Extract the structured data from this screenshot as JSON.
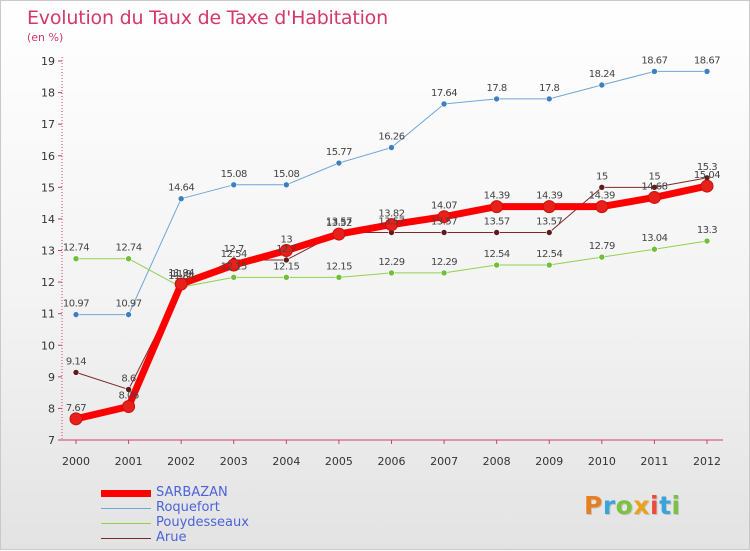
{
  "chart_data": {
    "type": "line",
    "title": "Evolution du Taux de Taxe d'Habitation",
    "unit_label": "(en %)",
    "x": [
      "2000",
      "2001",
      "2002",
      "2003",
      "2004",
      "2005",
      "2006",
      "2007",
      "2008",
      "2009",
      "2010",
      "2011",
      "2012"
    ],
    "ylim": [
      7,
      19
    ],
    "yticks": [
      7,
      8,
      9,
      10,
      11,
      12,
      13,
      14,
      15,
      16,
      17,
      18,
      19
    ],
    "grid": false,
    "legend_position": "bottom-left",
    "series": [
      {
        "name": "SARBAZAN",
        "color": "#ff0000",
        "marker": "#e8201a",
        "width": 7,
        "values": [
          7.67,
          8.06,
          11.94,
          12.54,
          13.0,
          13.52,
          13.82,
          14.07,
          14.39,
          14.39,
          14.39,
          14.68,
          15.04
        ],
        "labels": [
          "7.67",
          "8.06",
          "11.94",
          "12.54",
          "13",
          "13.52",
          "13.82",
          "14.07",
          "14.39",
          "14.39",
          "14.39",
          "14.68",
          "15.04"
        ]
      },
      {
        "name": "Roquefort",
        "color": "#6fa6d6",
        "marker": "#3d7fc1",
        "width": 1,
        "values": [
          10.97,
          10.97,
          14.64,
          15.08,
          15.08,
          15.77,
          16.26,
          17.64,
          17.8,
          17.8,
          18.24,
          18.67,
          18.67
        ],
        "labels": [
          "10.97",
          "10.97",
          "14.64",
          "15.08",
          "15.08",
          "15.77",
          "16.26",
          "17.64",
          "17.8",
          "17.8",
          "18.24",
          "18.67",
          "18.67"
        ]
      },
      {
        "name": "Pouydesseaux",
        "color": "#92d050",
        "marker": "#6fbf3a",
        "width": 1,
        "values": [
          12.74,
          12.74,
          11.84,
          12.15,
          12.15,
          12.15,
          12.29,
          12.29,
          12.54,
          12.54,
          12.79,
          13.04,
          13.3
        ],
        "labels": [
          "12.74",
          "12.74",
          "11.84",
          "12.15",
          "12.15",
          "12.15",
          "12.29",
          "12.29",
          "12.54",
          "12.54",
          "12.79",
          "13.04",
          "13.3"
        ]
      },
      {
        "name": "Arue",
        "color": "#7a2a2a",
        "marker": "#5e1c1c",
        "width": 1,
        "values": [
          9.14,
          8.6,
          11.9,
          12.7,
          12.7,
          13.57,
          13.57,
          13.57,
          13.57,
          13.57,
          15.0,
          15.0,
          15.3
        ],
        "labels": [
          "9.14",
          "8.6",
          "11.9",
          "12.7",
          "12.7",
          "13.57",
          "13.57",
          "13.57",
          "13.57",
          "13.57",
          "15",
          "15",
          "15.3"
        ]
      }
    ]
  },
  "brand": {
    "letters": [
      "P",
      "r",
      "o",
      "x",
      "i",
      "t",
      "i"
    ],
    "colors": [
      "#e67e22",
      "#3ba3dc",
      "#7cc144",
      "#e8a21b",
      "#e74c3c",
      "#3ba3dc",
      "#7cc144"
    ]
  }
}
